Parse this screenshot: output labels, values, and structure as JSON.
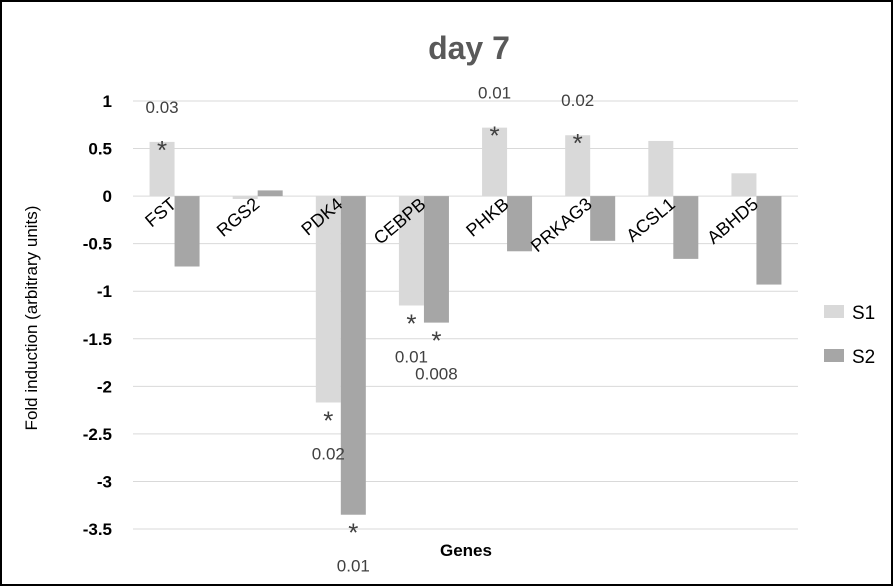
{
  "chart_data": {
    "type": "bar",
    "title": "day 7",
    "xlabel": "Genes",
    "ylabel": "Fold induction (arbitrary units)",
    "ylim": [
      -3.5,
      1
    ],
    "yticks": [
      "1",
      "0.5",
      "0",
      "-0.5",
      "-1",
      "-1.5",
      "-2",
      "-2.5",
      "-3",
      "-3.5"
    ],
    "ytick_values": [
      1,
      0.5,
      0,
      -0.5,
      -1,
      -1.5,
      -2,
      -2.5,
      -3,
      -3.5
    ],
    "grid": true,
    "legend_position": "right",
    "categories": [
      "FST",
      "RGS2",
      "PDK4",
      "CEBPB",
      "PHKB",
      "PRKAG3",
      "ACSL1",
      "ABHD5"
    ],
    "series": [
      {
        "name": "S1",
        "color": "#d9d9d9",
        "values": [
          0.57,
          -0.03,
          -2.17,
          -1.15,
          0.72,
          0.64,
          0.58,
          0.24
        ]
      },
      {
        "name": "S2",
        "color": "#a6a6a6",
        "values": [
          -0.74,
          0.06,
          -3.35,
          -1.33,
          -0.58,
          -0.47,
          -0.66,
          -0.93
        ]
      }
    ],
    "annotations": [
      {
        "category": "FST",
        "series": "S1",
        "marker": "*",
        "pvalue": "0.03"
      },
      {
        "category": "PDK4",
        "series": "S1",
        "marker": "*",
        "pvalue": "0.02"
      },
      {
        "category": "PDK4",
        "series": "S2",
        "marker": "*",
        "pvalue": "0.01"
      },
      {
        "category": "CEBPB",
        "series": "S1",
        "marker": "*",
        "pvalue": "0.01"
      },
      {
        "category": "CEBPB",
        "series": "S2",
        "marker": "*",
        "pvalue": "0.008"
      },
      {
        "category": "PHKB",
        "series": "S1",
        "marker": "*",
        "pvalue": "0.01"
      },
      {
        "category": "PRKAG3",
        "series": "S1",
        "marker": "*",
        "pvalue": "0.02"
      }
    ]
  }
}
